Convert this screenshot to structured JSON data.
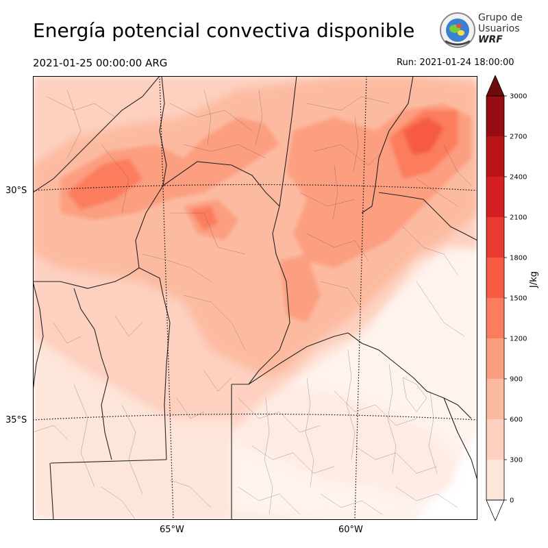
{
  "header": {
    "title": "Energía potencial convectiva disponible",
    "valid_time": "2021-01-25 00:00:00 ARG",
    "run": "Run: 2021-01-24 18:00:00"
  },
  "logo": {
    "line1": "Grupo de",
    "line2": "Usuarios",
    "line3": "WRF"
  },
  "axes": {
    "lat_labels": [
      "30°S",
      "35°S"
    ],
    "lon_labels": [
      "65°W",
      "60°W"
    ]
  },
  "colorbar": {
    "unit": "J/kg",
    "ticks": [
      "0",
      "300",
      "600",
      "900",
      "1200",
      "1500",
      "1800",
      "2100",
      "2400",
      "2700",
      "3000"
    ],
    "colors": [
      "#fee5d9",
      "#fdd0c0",
      "#fcbba1",
      "#fc9e80",
      "#fb7d5d",
      "#f65a43",
      "#e93a2f",
      "#d42023",
      "#b81418",
      "#950c12",
      "#6f0a0d"
    ],
    "extend": "both"
  }
}
